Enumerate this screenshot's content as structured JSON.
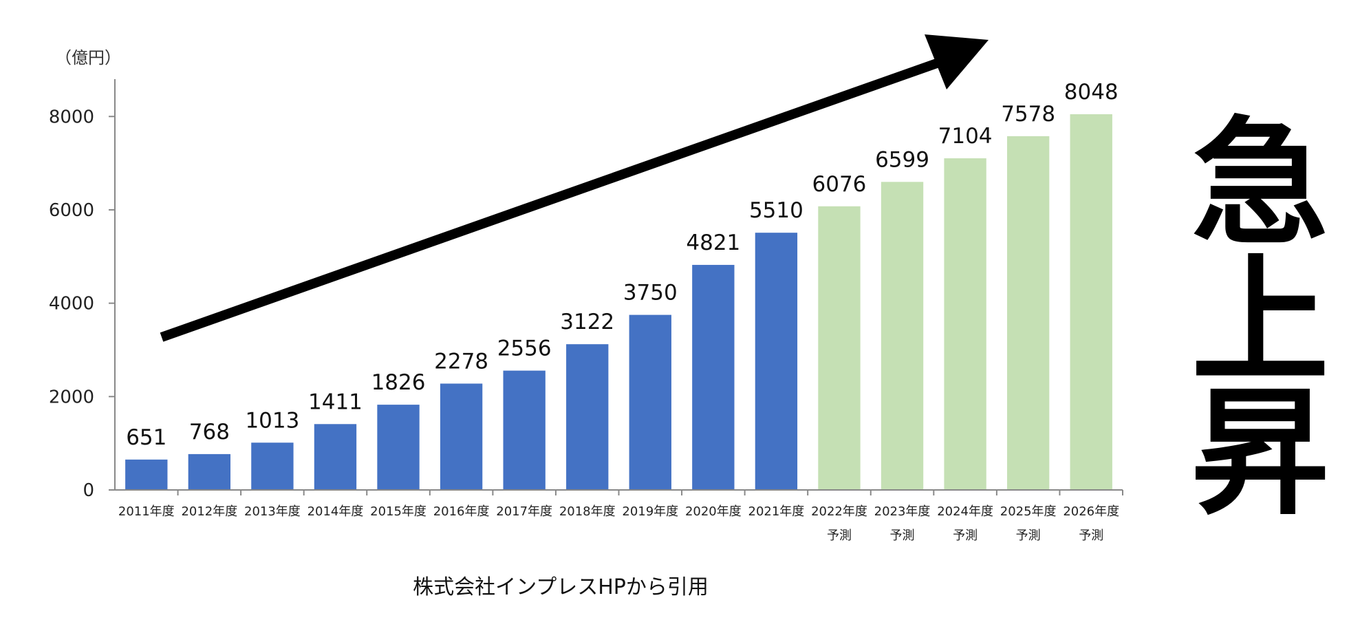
{
  "chart_data": {
    "type": "bar",
    "unit_label": "（億円）",
    "categories": [
      [
        "2011年度"
      ],
      [
        "2012年度"
      ],
      [
        "2013年度"
      ],
      [
        "2014年度"
      ],
      [
        "2015年度"
      ],
      [
        "2016年度"
      ],
      [
        "2017年度"
      ],
      [
        "2018年度"
      ],
      [
        "2019年度"
      ],
      [
        "2020年度"
      ],
      [
        "2021年度"
      ],
      [
        "2022年度",
        "予測"
      ],
      [
        "2023年度",
        "予測"
      ],
      [
        "2024年度",
        "予測"
      ],
      [
        "2025年度",
        "予測"
      ],
      [
        "2026年度",
        "予測"
      ]
    ],
    "values": [
      651,
      768,
      1013,
      1411,
      1826,
      2278,
      2556,
      3122,
      3750,
      4821,
      5510,
      6076,
      6599,
      7104,
      7578,
      8048
    ],
    "forecast": [
      false,
      false,
      false,
      false,
      false,
      false,
      false,
      false,
      false,
      false,
      false,
      true,
      true,
      true,
      true,
      true
    ],
    "colors": {
      "actual": "#4472c4",
      "forecast": "#c5e0b4",
      "axis": "#888888",
      "arrow": "#000000"
    },
    "ylim": [
      0,
      8800
    ],
    "yticks": [
      0,
      2000,
      4000,
      6000,
      8000
    ],
    "grid": false,
    "legend": "none"
  },
  "headline": [
    "急",
    "上",
    "昇"
  ],
  "source_note": "株式会社インプレスHPから引用"
}
